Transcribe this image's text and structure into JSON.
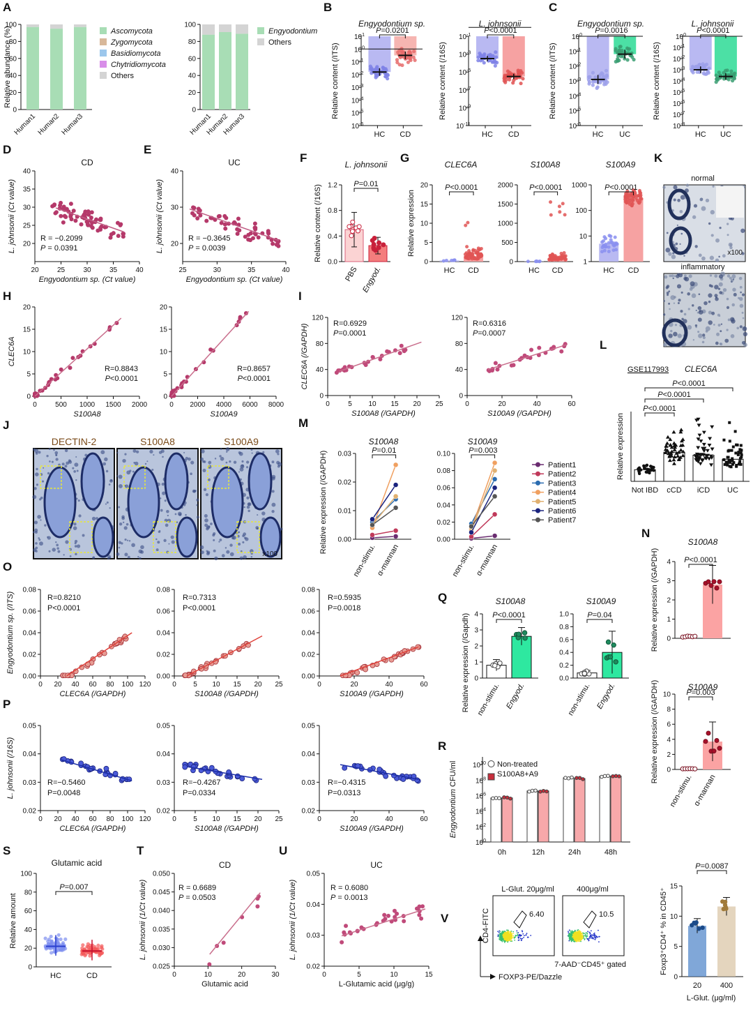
{
  "panel_letters": [
    "A",
    "B",
    "C",
    "D",
    "E",
    "F",
    "G",
    "H",
    "I",
    "J",
    "K",
    "L",
    "M",
    "N",
    "O",
    "P",
    "Q",
    "R",
    "S",
    "T",
    "U",
    "V"
  ],
  "chart_data": [
    {
      "id": "A1",
      "type": "bar",
      "stacked": true,
      "categories": [
        "Human1",
        "Human2",
        "Human3"
      ],
      "ylabel": "Relative abundance (%)",
      "ylim": [
        0,
        100
      ],
      "series": [
        {
          "name": "Ascomycota",
          "color": "#a8ddb5",
          "values": [
            97,
            95,
            97
          ]
        },
        {
          "name": "Zygomycota",
          "color": "#d8b89a",
          "values": [
            0,
            0,
            0
          ]
        },
        {
          "name": "Basidiomycota",
          "color": "#9cc7ec",
          "values": [
            0,
            0,
            0
          ]
        },
        {
          "name": "Chytridiomycota",
          "color": "#d88ee8",
          "values": [
            0,
            0,
            0
          ]
        },
        {
          "name": "Others",
          "color": "#d4d4d4",
          "values": [
            3,
            5,
            3
          ]
        }
      ]
    },
    {
      "id": "A2",
      "type": "bar",
      "stacked": true,
      "categories": [
        "Human1",
        "Human2",
        "Human3"
      ],
      "ylim": [
        0,
        100
      ],
      "series": [
        {
          "name": "Engyodontium",
          "color": "#a8ddb5",
          "values": [
            88,
            91,
            89
          ]
        },
        {
          "name": "Others",
          "color": "#d4d4d4",
          "values": [
            12,
            9,
            11
          ]
        }
      ]
    },
    {
      "id": "B1",
      "type": "scatter",
      "title": "Engyodontium sp.",
      "ylabel": "Relative content (/ITS)",
      "ylog": [
        -6,
        1
      ],
      "categories": [
        "HC",
        "CD"
      ],
      "means_log": [
        -1.8,
        -0.5
      ],
      "p": "P=0.0201"
    },
    {
      "id": "B2",
      "type": "scatter",
      "title": "L. johnsonii",
      "ylabel": "Relative content (/16S)",
      "ylog": [
        -11,
        -1
      ],
      "categories": [
        "HC",
        "CD"
      ],
      "means_log": [
        -3.5,
        -5.5
      ],
      "p": "P<0.0001"
    },
    {
      "id": "C1",
      "type": "scatter",
      "title": "Engyodontium sp.",
      "ylabel": "Relative content (/ITS)",
      "ylog": [
        -6,
        0
      ],
      "categories": [
        "HC",
        "UC"
      ],
      "means_log": [
        -2.9,
        -1.2
      ],
      "p": "P=0.0016"
    },
    {
      "id": "C2",
      "type": "scatter",
      "title": "L. johnsonii",
      "ylabel": "Relative content (/16S)",
      "ylog": [
        -8,
        0
      ],
      "categories": [
        "HC",
        "UC"
      ],
      "means_log": [
        -3.0,
        -3.6
      ],
      "p": "P<0.0001"
    },
    {
      "id": "D",
      "type": "scatter",
      "title": "CD",
      "xlabel": "Engyodontium sp. (Ct value)",
      "ylabel": "L. johnsonii (Ct value)",
      "xlim": [
        20,
        40
      ],
      "ylim": [
        15,
        40
      ],
      "stats": [
        "R = −0.2099",
        "P = 0.0391"
      ],
      "fit": [
        [
          24,
          29.8
        ],
        [
          37,
          23.2
        ]
      ]
    },
    {
      "id": "E",
      "type": "scatter",
      "title": "UC",
      "xlabel": "Engyodontium sp. (Ct value)",
      "ylabel": "L. johnsonii (Ct value)",
      "xlim": [
        25,
        40
      ],
      "ylim": [
        15,
        40
      ],
      "stats": [
        "R = −0.3645",
        "P = 0.0039"
      ],
      "fit": [
        [
          26,
          29.5
        ],
        [
          39,
          20.8
        ]
      ]
    },
    {
      "id": "F",
      "type": "bar",
      "title": "L. johnsonii",
      "ylabel": "Relative content (/16S)",
      "categories": [
        "PBS",
        "Engyod."
      ],
      "values": [
        0.5,
        0.25
      ],
      "sd": [
        0.27,
        0.13
      ],
      "ylim": [
        0,
        1.2
      ],
      "p": "P=0.01"
    },
    {
      "id": "G1",
      "type": "bar",
      "title": "CLEC6A",
      "ylabel": "Relative expression",
      "categories": [
        "HC",
        "CD"
      ],
      "values": [
        0.3,
        1.5
      ],
      "ylim": [
        0,
        20
      ],
      "p": "P<0.0001"
    },
    {
      "id": "G2",
      "type": "bar",
      "title": "S100A8",
      "categories": [
        "HC",
        "CD"
      ],
      "values": [
        5,
        90
      ],
      "ylim": [
        0,
        2000
      ],
      "p": "P<0.0001"
    },
    {
      "id": "G3",
      "type": "bar",
      "title": "S100A9",
      "ylog": [
        0,
        3
      ],
      "categories": [
        "HC",
        "CD"
      ],
      "values": [
        5,
        300
      ],
      "p": "P<0.0001"
    },
    {
      "id": "H1",
      "type": "scatter",
      "xlabel": "S100A8",
      "ylabel": "CLEC6A",
      "xlim": [
        0,
        2000
      ],
      "ylim": [
        0,
        20
      ],
      "stats": [
        "R=0.8843",
        "P<0.0001"
      ],
      "fit": [
        [
          0,
          0
        ],
        [
          1650,
          17.5
        ]
      ]
    },
    {
      "id": "H2",
      "type": "scatter",
      "xlabel": "S100A9",
      "xlim": [
        0,
        8000
      ],
      "ylim": [
        0,
        20
      ],
      "stats": [
        "R=0.8657",
        "P<0.0001"
      ],
      "fit": [
        [
          0,
          0
        ],
        [
          5900,
          19
        ]
      ]
    },
    {
      "id": "I1",
      "type": "scatter",
      "xlabel": "S100A8  (/GAPDH)",
      "ylabel": "CLEC6A (/GAPDH)",
      "xlim": [
        0,
        25
      ],
      "ylim": [
        0,
        120
      ],
      "stats": [
        "R=0.6929",
        "P=0.0001"
      ],
      "fit": [
        [
          2.5,
          37
        ],
        [
          21,
          82
        ]
      ]
    },
    {
      "id": "I2",
      "type": "scatter",
      "xlabel": "S100A9 (/GAPDH)",
      "xlim": [
        0,
        60
      ],
      "ylim": [
        0,
        120
      ],
      "stats": [
        "R=0.6316",
        "P=0.0007"
      ],
      "fit": [
        [
          12,
          40
        ],
        [
          57,
          78
        ]
      ]
    },
    {
      "id": "L",
      "type": "bar",
      "title": "CLEC6A",
      "ylabel": "Relative expression",
      "categories": [
        "Not IBD",
        "cCD",
        "iCD",
        "UC"
      ],
      "values": [
        0.2,
        0.5,
        0.45,
        0.38
      ],
      "p": [
        "P<0.0001",
        "P<0.0001",
        "P<0.0001"
      ]
    },
    {
      "id": "M1",
      "type": "line",
      "title": "S100A8",
      "ylabel": "Relative expression (/GAPDH)",
      "categories": [
        "non-stimu.",
        "α-mannan"
      ],
      "ylim": [
        0,
        0.03
      ],
      "p": "P=0.01",
      "series": [
        {
          "name": "Patient1",
          "color": "#6a2c70",
          "values": [
            0.0005,
            0.001
          ]
        },
        {
          "name": "Patient2",
          "color": "#c0395a",
          "values": [
            0.0015,
            0.003
          ]
        },
        {
          "name": "Patient3",
          "color": "#2b6cb0",
          "values": [
            0.006,
            0.014
          ]
        },
        {
          "name": "Patient4",
          "color": "#f0a060",
          "values": [
            0.004,
            0.026
          ]
        },
        {
          "name": "Patient5",
          "color": "#e0b070",
          "values": [
            0.005,
            0.015
          ]
        },
        {
          "name": "Patient6",
          "color": "#1a237e",
          "values": [
            0.007,
            0.019
          ]
        },
        {
          "name": "Patient7",
          "color": "#555555",
          "values": [
            0.005,
            0.011
          ]
        }
      ]
    },
    {
      "id": "M2",
      "type": "line",
      "title": "S100A9",
      "categories": [
        "non-stimu.",
        "α-mannan"
      ],
      "ylim": [
        0,
        0.1
      ],
      "p": "P=0.003",
      "series": [
        {
          "name": "Patient1",
          "values": [
            0.001,
            0.004
          ]
        },
        {
          "name": "Patient2",
          "values": [
            0.003,
            0.029
          ]
        },
        {
          "name": "Patient3",
          "values": [
            0.018,
            0.07
          ]
        },
        {
          "name": "Patient4",
          "values": [
            0.012,
            0.089
          ]
        },
        {
          "name": "Patient5",
          "values": [
            0.01,
            0.08
          ]
        },
        {
          "name": "Patient6",
          "values": [
            0.008,
            0.06
          ]
        },
        {
          "name": "Patient7",
          "values": [
            0.015,
            0.05
          ]
        }
      ]
    },
    {
      "id": "N1",
      "type": "bar",
      "title": "S100A8",
      "ylabel": "Relative expression (/GAPDH)",
      "categories": [
        "",
        ""
      ],
      "values": [
        0.1,
        2.8
      ],
      "sd": [
        0.05,
        1.0
      ],
      "ylim": [
        0,
        4
      ],
      "p": "P<0.0001"
    },
    {
      "id": "N2",
      "type": "bar",
      "title": "S100A9",
      "ylabel": "Relative expression (/GAPDH)",
      "categories": [
        "non-stimu.",
        "α-mannan"
      ],
      "values": [
        0.1,
        3.7
      ],
      "sd": [
        0.1,
        2.6
      ],
      "ylim": [
        0,
        10
      ],
      "p": "P=0.003"
    },
    {
      "id": "O1",
      "type": "scatter",
      "xlabel": "CLEC6A (/GAPDH)",
      "ylabel": "Engyodontium sp. (/ITS)",
      "xlim": [
        0,
        120
      ],
      "ylim": [
        0,
        0.08
      ],
      "stats": [
        "R=0.8210",
        "P<0.0001"
      ],
      "fit": [
        [
          30,
          -0.003
        ],
        [
          105,
          0.04
        ]
      ]
    },
    {
      "id": "O2",
      "type": "scatter",
      "xlabel": "S100A8 (/GAPDH)",
      "xlim": [
        0,
        25
      ],
      "ylim": [
        0,
        0.08
      ],
      "stats": [
        "R=0.7313",
        "P<0.0001"
      ],
      "fit": [
        [
          3,
          0.0
        ],
        [
          21,
          0.037
        ]
      ]
    },
    {
      "id": "O3",
      "type": "scatter",
      "xlabel": "S100A9 (/GAPDH)",
      "xlim": [
        0,
        60
      ],
      "ylim": [
        0,
        0.08
      ],
      "stats": [
        "R=0.5935",
        "P=0.0018"
      ],
      "fit": [
        [
          12,
          -0.002
        ],
        [
          57,
          0.027
        ]
      ]
    },
    {
      "id": "P1",
      "type": "scatter",
      "xlabel": "CLEC6A (/GAPDH)",
      "ylabel": "L. johnsonii (/16S)",
      "xlim": [
        0,
        120
      ],
      "ylim": [
        0.02,
        0.05
      ],
      "stats": [
        "R=−0.5460",
        "P=0.0048"
      ],
      "fit": [
        [
          25,
          0.0378
        ],
        [
          105,
          0.0305
        ]
      ]
    },
    {
      "id": "P2",
      "type": "scatter",
      "xlabel": "S100A8 (/GAPDH)",
      "xlim": [
        0,
        25
      ],
      "ylim": [
        0.02,
        0.05
      ],
      "stats": [
        "R=−0.4267",
        "P=0.0334"
      ],
      "fit": [
        [
          3,
          0.0355
        ],
        [
          21,
          0.031
        ]
      ]
    },
    {
      "id": "P3",
      "type": "scatter",
      "xlabel": "S100A9 (/GAPDH)",
      "xlim": [
        0,
        60
      ],
      "ylim": [
        0.02,
        0.05
      ],
      "stats": [
        "R=−0.4315",
        "P=0.0313"
      ],
      "fit": [
        [
          12,
          0.0362
        ],
        [
          57,
          0.031
        ]
      ]
    },
    {
      "id": "Q1",
      "type": "bar",
      "title": "S100A8",
      "ylabel": "Relative expression (/Gapdh)",
      "categories": [
        "non-stimu.",
        "Engyod."
      ],
      "values": [
        0.8,
        2.6
      ],
      "sd": [
        0.35,
        0.55
      ],
      "ylim": [
        0,
        4
      ],
      "p": "P<0.0001"
    },
    {
      "id": "Q2",
      "type": "bar",
      "title": "S100A9",
      "categories": [
        "non-stimu.",
        "Engyod."
      ],
      "values": [
        0.08,
        0.4
      ],
      "sd": [
        0.04,
        0.33
      ],
      "ylim": [
        0,
        1.0
      ],
      "p": "P=0.04"
    },
    {
      "id": "R",
      "type": "bar",
      "ylabel": "Engyodontium CFU/ml",
      "ylog": [
        0,
        11
      ],
      "categories": [
        "0h",
        "12h",
        "24h",
        "48h"
      ],
      "series": [
        {
          "name": "Non-treated",
          "color": "#ffffff",
          "values_log": [
            5.7,
            6.6,
            8.3,
            8.5
          ]
        },
        {
          "name": "S100A8+A9",
          "color": "#f7a8aa",
          "values_log": [
            5.7,
            6.6,
            8.2,
            8.5
          ]
        }
      ]
    },
    {
      "id": "S",
      "type": "scatter",
      "title": "Glutamic acid",
      "ylabel": "Relative amount",
      "categories": [
        "HC",
        "CD"
      ],
      "means": [
        22,
        17
      ],
      "ylim": [
        0,
        100
      ],
      "p": "P=0.007"
    },
    {
      "id": "T",
      "type": "scatter",
      "title": "CD",
      "xlabel": "Glutamic acid",
      "ylabel": "L. johnsonii (1/Ct value)",
      "xlim": [
        0,
        30
      ],
      "ylim": [
        0.025,
        0.05
      ],
      "stats": [
        "R = 0.6689",
        "P = 0.0503"
      ],
      "fit": [
        [
          10.5,
          0.0282
        ],
        [
          25.5,
          0.0448
        ]
      ]
    },
    {
      "id": "U",
      "type": "scatter",
      "title": "UC",
      "xlabel": "L-Glutamic acid (μg/g)",
      "ylabel": "L. johnsonii (1/Ct value)",
      "xlim": [
        0,
        15
      ],
      "ylim": [
        0.02,
        0.05
      ],
      "stats": [
        "R = 0.6080",
        "P = 0.0013"
      ],
      "fit": [
        [
          2.5,
          0.0298
        ],
        [
          14.5,
          0.0385
        ]
      ]
    },
    {
      "id": "V",
      "type": "bar",
      "ylabel": "Foxp3⁺CD4⁺ % in CD45⁺",
      "xlabel": "L-Glut. (μg/ml)",
      "categories": [
        "20",
        "400"
      ],
      "values": [
        8.4,
        11.6
      ],
      "sd": [
        1.2,
        1.5
      ],
      "ylim": [
        0,
        15
      ],
      "p": "P=0.0087"
    }
  ],
  "texts": {
    "A_leg1": [
      "Ascomycota",
      "Zygomycota",
      "Basidiomycota",
      "Chytridiomycota",
      "Others"
    ],
    "A_leg2": [
      "Engyodontium",
      "Others"
    ],
    "A_x": [
      "Human1",
      "Human2",
      "Human3"
    ],
    "K_labels": [
      "normal",
      "inflammatory",
      "x100"
    ],
    "J_labels": [
      "DECTIN-2",
      "S100A8",
      "S100A9",
      "x100"
    ],
    "L_link": "GSE117993",
    "V_flow": [
      "L-Glut. 20μg/ml",
      "400μg/ml",
      "6.40",
      "10.5",
      "CD4-FITC",
      "7-AAD⁻CD45⁺ gated",
      "FOXP3-PE/Dazzle"
    ],
    "R_legend": [
      "Non-treated",
      "S100A8+A9"
    ]
  }
}
